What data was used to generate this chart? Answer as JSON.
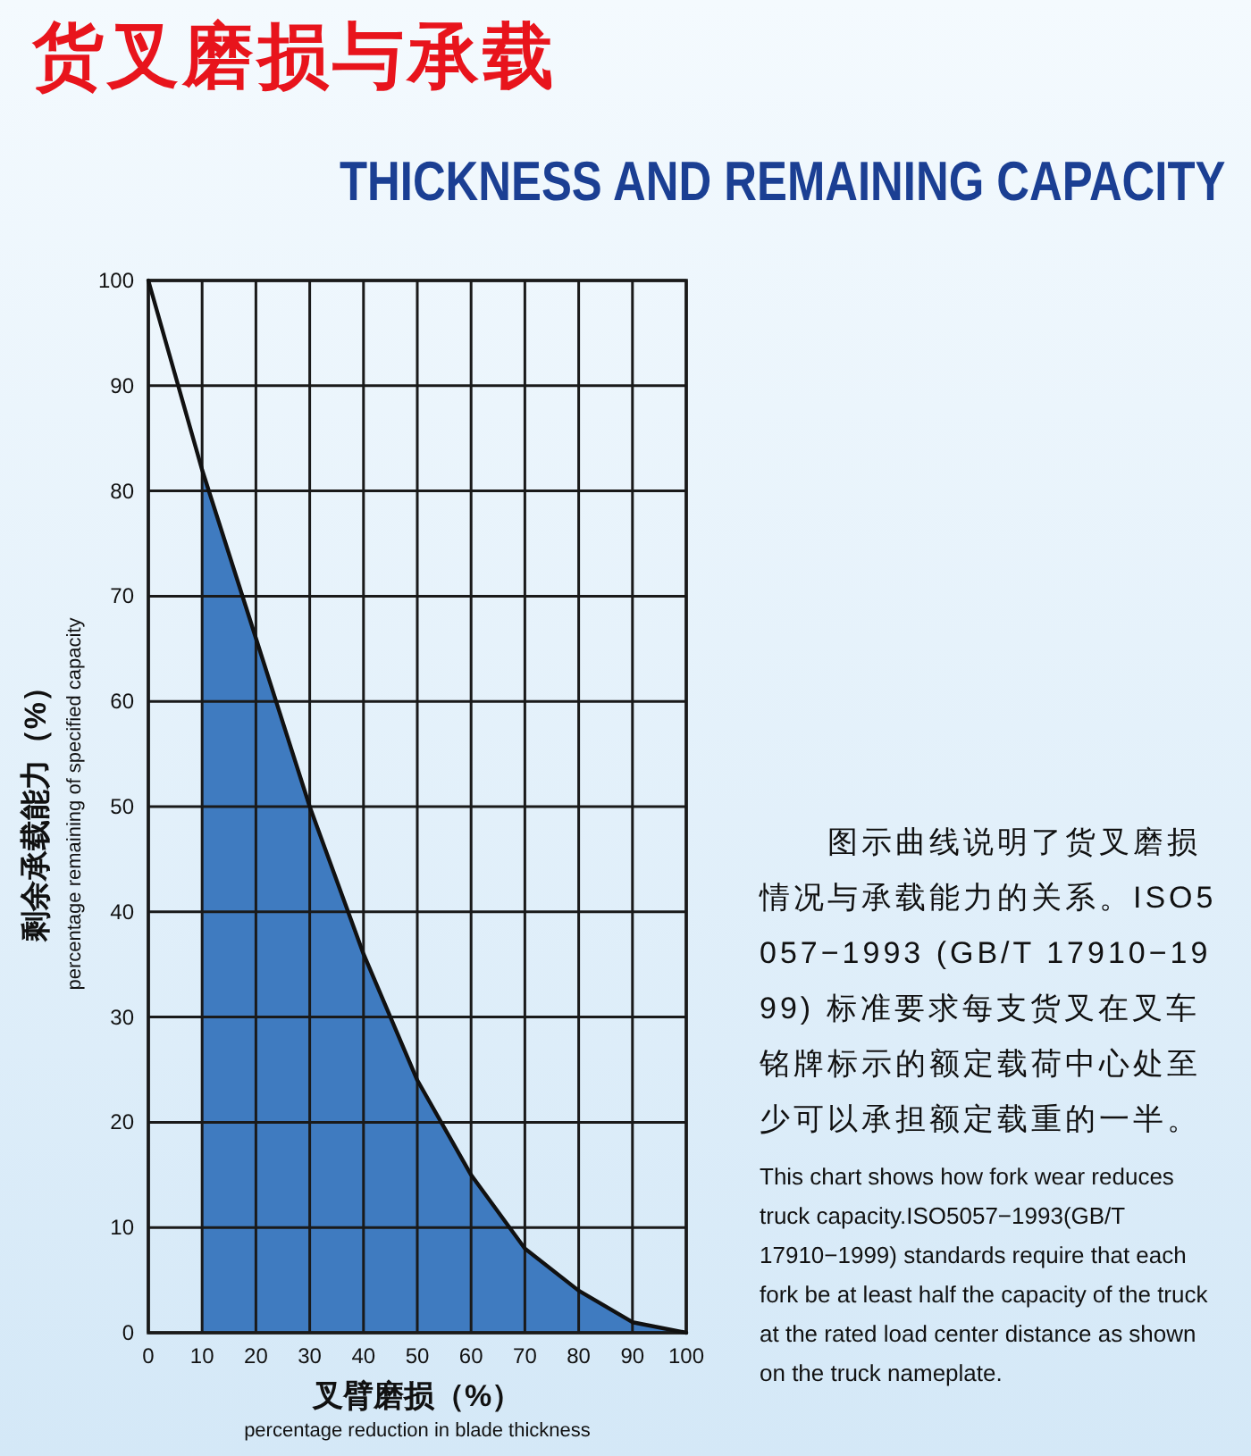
{
  "chart_data": {
    "type": "area",
    "title": "货叉磨损与承载",
    "subtitle": "THICKNESS AND REMAINING CAPACITY",
    "xlabel": "叉臂磨损（%）\npercentage reduction in blade thickness",
    "ylabel": "剩余承载能力（%）\npercentage remaining of specified capacity",
    "xlim": [
      0,
      100
    ],
    "ylim": [
      0,
      100
    ],
    "xticks": [
      0,
      10,
      20,
      30,
      40,
      50,
      60,
      70,
      80,
      90,
      100
    ],
    "yticks": [
      0,
      10,
      20,
      30,
      40,
      50,
      60,
      70,
      80,
      90,
      100
    ],
    "grid": true,
    "series": [
      {
        "type": "area",
        "color": "#3f7bc0",
        "x": [
          10,
          20,
          30,
          40,
          50,
          60,
          70,
          80,
          90,
          100
        ],
        "values": [
          82,
          66,
          50,
          36,
          24,
          15,
          8,
          4,
          1,
          0
        ]
      },
      {
        "type": "line",
        "color": "#111111",
        "x": [
          0,
          10,
          20,
          30,
          40,
          50,
          60,
          70,
          80,
          90,
          100
        ],
        "values": [
          100,
          82,
          66,
          50,
          36,
          24,
          15,
          8,
          4,
          1,
          0
        ]
      }
    ],
    "annotations": [
      "图示曲线说明了货叉磨损情况与承载能力的关系。ISO5057−1993 (GB/T 17910−1999) 标准要求每支货叉在叉车铭牌标示的额定载荷中心处至少可以承担额定载重的一半。",
      "This chart shows how fork wear reduces truck capacity.ISO5057−1993(GB/T 17910−1999) standards require that each fork be at least half the capacity of the truck at the rated load center distance as shown on the truck nameplate."
    ]
  }
}
